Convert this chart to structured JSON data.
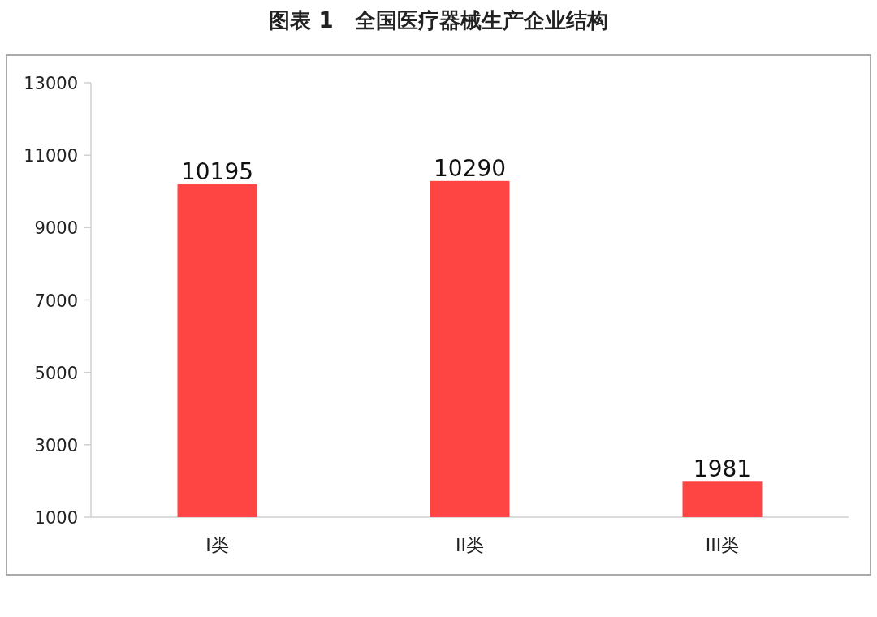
{
  "chart_data": {
    "type": "bar",
    "title": "图表 1　全国医疗器械生产企业结构",
    "categories": [
      "I类",
      "II类",
      "III类"
    ],
    "values": [
      10195,
      10290,
      1981
    ],
    "color": "#ff4444",
    "ylim": [
      1000,
      13000
    ],
    "yticks": [
      1000,
      3000,
      5000,
      7000,
      9000,
      11000,
      13000
    ],
    "data_labels": true
  }
}
